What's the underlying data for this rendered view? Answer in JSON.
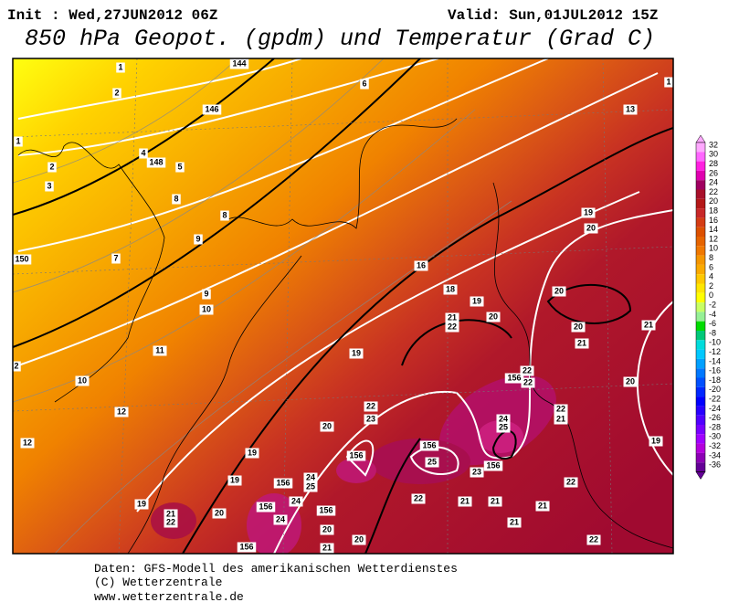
{
  "header": {
    "init": "Init : Wed,27JUN2012 06Z",
    "valid": "Valid: Sun,01JUL2012 15Z",
    "title": "850 hPa Geopot. (gpdm) und Temperatur (Grad C)"
  },
  "map": {
    "labels": [
      "1",
      "2",
      "144",
      "146",
      "1",
      "2",
      "4",
      "148",
      "5",
      "3",
      "8",
      "8",
      "9",
      "7",
      "150",
      "9",
      "10",
      "6",
      "13",
      "1",
      "19",
      "20",
      "16",
      "18",
      "19",
      "20",
      "21",
      "22",
      "20",
      "20",
      "21",
      "21",
      "11",
      "19",
      "2",
      "10",
      "156",
      "22",
      "22",
      "20",
      "22",
      "23",
      "22",
      "21",
      "12",
      "20",
      "24",
      "25",
      "12",
      "19",
      "156",
      "156",
      "25",
      "156",
      "23",
      "19",
      "19",
      "156",
      "24",
      "25",
      "22",
      "21",
      "22",
      "20",
      "156",
      "24",
      "156",
      "22",
      "21",
      "21",
      "21",
      "19",
      "24",
      "20",
      "21",
      "20",
      "22",
      "156",
      "21"
    ]
  },
  "colorbar": {
    "labels": [
      "32",
      "30",
      "28",
      "26",
      "24",
      "22",
      "20",
      "18",
      "16",
      "14",
      "12",
      "10",
      "8",
      "6",
      "4",
      "2",
      "0",
      "-2",
      "-4",
      "-6",
      "-8",
      "-10",
      "-12",
      "-14",
      "-16",
      "-18",
      "-20",
      "-22",
      "-24",
      "-26",
      "-28",
      "-30",
      "-32",
      "-34",
      "-36"
    ]
  },
  "footer": {
    "line1": "Daten: GFS-Modell des amerikanischen Wetterdienstes",
    "line2": "(C) Wetterzentrale",
    "line3": "www.wetterzentrale.de"
  }
}
